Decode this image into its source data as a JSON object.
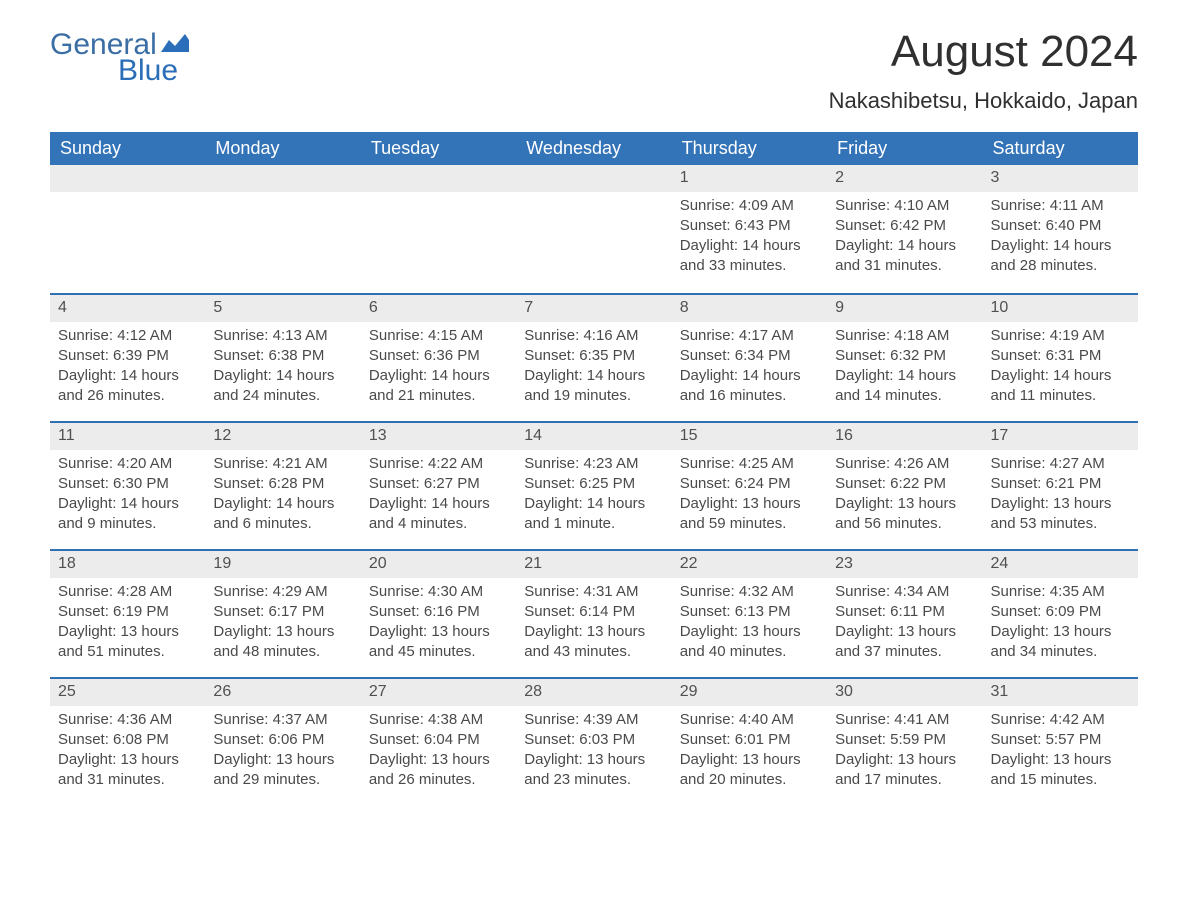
{
  "logo": {
    "word1": "General",
    "word2": "Blue"
  },
  "title": "August 2024",
  "location": "Nakashibetsu, Hokkaido, Japan",
  "colors": {
    "header_bg": "#3373b8",
    "header_text": "#ffffff",
    "daynum_bg": "#ececec",
    "daynum_border": "#2f6fb3",
    "body_text": "#4a4a4a",
    "logo_color": "#2a6db8"
  },
  "day_headers": [
    "Sunday",
    "Monday",
    "Tuesday",
    "Wednesday",
    "Thursday",
    "Friday",
    "Saturday"
  ],
  "weeks": [
    [
      null,
      null,
      null,
      null,
      {
        "n": "1",
        "sunrise": "4:09 AM",
        "sunset": "6:43 PM",
        "daylight": "14 hours and 33 minutes."
      },
      {
        "n": "2",
        "sunrise": "4:10 AM",
        "sunset": "6:42 PM",
        "daylight": "14 hours and 31 minutes."
      },
      {
        "n": "3",
        "sunrise": "4:11 AM",
        "sunset": "6:40 PM",
        "daylight": "14 hours and 28 minutes."
      }
    ],
    [
      {
        "n": "4",
        "sunrise": "4:12 AM",
        "sunset": "6:39 PM",
        "daylight": "14 hours and 26 minutes."
      },
      {
        "n": "5",
        "sunrise": "4:13 AM",
        "sunset": "6:38 PM",
        "daylight": "14 hours and 24 minutes."
      },
      {
        "n": "6",
        "sunrise": "4:15 AM",
        "sunset": "6:36 PM",
        "daylight": "14 hours and 21 minutes."
      },
      {
        "n": "7",
        "sunrise": "4:16 AM",
        "sunset": "6:35 PM",
        "daylight": "14 hours and 19 minutes."
      },
      {
        "n": "8",
        "sunrise": "4:17 AM",
        "sunset": "6:34 PM",
        "daylight": "14 hours and 16 minutes."
      },
      {
        "n": "9",
        "sunrise": "4:18 AM",
        "sunset": "6:32 PM",
        "daylight": "14 hours and 14 minutes."
      },
      {
        "n": "10",
        "sunrise": "4:19 AM",
        "sunset": "6:31 PM",
        "daylight": "14 hours and 11 minutes."
      }
    ],
    [
      {
        "n": "11",
        "sunrise": "4:20 AM",
        "sunset": "6:30 PM",
        "daylight": "14 hours and 9 minutes."
      },
      {
        "n": "12",
        "sunrise": "4:21 AM",
        "sunset": "6:28 PM",
        "daylight": "14 hours and 6 minutes."
      },
      {
        "n": "13",
        "sunrise": "4:22 AM",
        "sunset": "6:27 PM",
        "daylight": "14 hours and 4 minutes."
      },
      {
        "n": "14",
        "sunrise": "4:23 AM",
        "sunset": "6:25 PM",
        "daylight": "14 hours and 1 minute."
      },
      {
        "n": "15",
        "sunrise": "4:25 AM",
        "sunset": "6:24 PM",
        "daylight": "13 hours and 59 minutes."
      },
      {
        "n": "16",
        "sunrise": "4:26 AM",
        "sunset": "6:22 PM",
        "daylight": "13 hours and 56 minutes."
      },
      {
        "n": "17",
        "sunrise": "4:27 AM",
        "sunset": "6:21 PM",
        "daylight": "13 hours and 53 minutes."
      }
    ],
    [
      {
        "n": "18",
        "sunrise": "4:28 AM",
        "sunset": "6:19 PM",
        "daylight": "13 hours and 51 minutes."
      },
      {
        "n": "19",
        "sunrise": "4:29 AM",
        "sunset": "6:17 PM",
        "daylight": "13 hours and 48 minutes."
      },
      {
        "n": "20",
        "sunrise": "4:30 AM",
        "sunset": "6:16 PM",
        "daylight": "13 hours and 45 minutes."
      },
      {
        "n": "21",
        "sunrise": "4:31 AM",
        "sunset": "6:14 PM",
        "daylight": "13 hours and 43 minutes."
      },
      {
        "n": "22",
        "sunrise": "4:32 AM",
        "sunset": "6:13 PM",
        "daylight": "13 hours and 40 minutes."
      },
      {
        "n": "23",
        "sunrise": "4:34 AM",
        "sunset": "6:11 PM",
        "daylight": "13 hours and 37 minutes."
      },
      {
        "n": "24",
        "sunrise": "4:35 AM",
        "sunset": "6:09 PM",
        "daylight": "13 hours and 34 minutes."
      }
    ],
    [
      {
        "n": "25",
        "sunrise": "4:36 AM",
        "sunset": "6:08 PM",
        "daylight": "13 hours and 31 minutes."
      },
      {
        "n": "26",
        "sunrise": "4:37 AM",
        "sunset": "6:06 PM",
        "daylight": "13 hours and 29 minutes."
      },
      {
        "n": "27",
        "sunrise": "4:38 AM",
        "sunset": "6:04 PM",
        "daylight": "13 hours and 26 minutes."
      },
      {
        "n": "28",
        "sunrise": "4:39 AM",
        "sunset": "6:03 PM",
        "daylight": "13 hours and 23 minutes."
      },
      {
        "n": "29",
        "sunrise": "4:40 AM",
        "sunset": "6:01 PM",
        "daylight": "13 hours and 20 minutes."
      },
      {
        "n": "30",
        "sunrise": "4:41 AM",
        "sunset": "5:59 PM",
        "daylight": "13 hours and 17 minutes."
      },
      {
        "n": "31",
        "sunrise": "4:42 AM",
        "sunset": "5:57 PM",
        "daylight": "13 hours and 15 minutes."
      }
    ]
  ],
  "labels": {
    "sunrise": "Sunrise: ",
    "sunset": "Sunset: ",
    "daylight": "Daylight: "
  }
}
